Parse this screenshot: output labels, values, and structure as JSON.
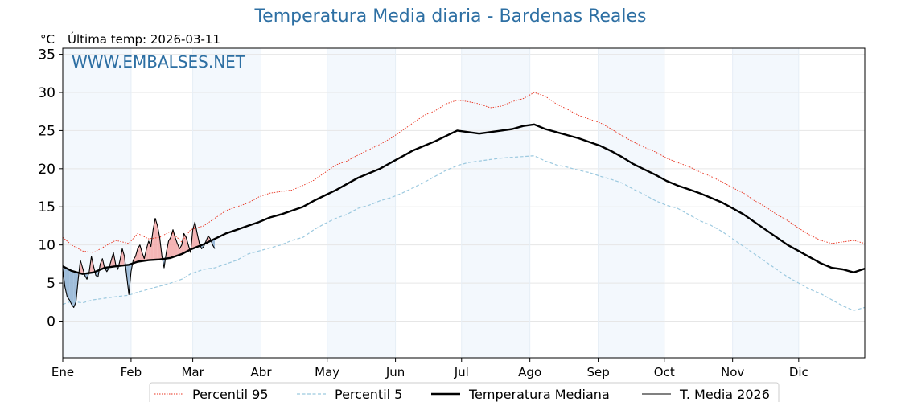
{
  "chart_data": {
    "type": "line",
    "title": "Temperatura Media diaria - Bardenas Reales",
    "unit_label": "°C",
    "last_temp_label": "Última temp: 2026-03-11",
    "watermark": "WWW.EMBALSES.NET",
    "months": [
      "Ene",
      "Feb",
      "Mar",
      "Abr",
      "May",
      "Jun",
      "Jul",
      "Ago",
      "Sep",
      "Oct",
      "Nov",
      "Dic"
    ],
    "yticks": [
      0,
      5,
      10,
      15,
      20,
      25,
      30,
      35
    ],
    "ylim": [
      -4.8,
      35.8
    ],
    "x_unit": "day of year",
    "xlim": [
      1,
      365
    ],
    "grid": true,
    "legend_position": "bottom",
    "series": [
      {
        "name": "Percentil 95",
        "color": "#e8301c",
        "style": "dotted",
        "x": [
          1,
          5,
          10,
          15,
          20,
          25,
          31,
          35,
          40,
          45,
          50,
          55,
          59,
          65,
          70,
          75,
          80,
          85,
          90,
          95,
          100,
          105,
          110,
          115,
          120,
          125,
          130,
          135,
          140,
          145,
          150,
          155,
          160,
          165,
          170,
          175,
          180,
          185,
          190,
          195,
          200,
          205,
          210,
          215,
          220,
          225,
          230,
          235,
          240,
          245,
          250,
          255,
          260,
          265,
          270,
          275,
          280,
          285,
          290,
          295,
          300,
          305,
          310,
          315,
          320,
          325,
          330,
          335,
          340,
          345,
          350,
          355,
          360,
          365
        ],
        "values": [
          11.0,
          10.0,
          9.2,
          9.0,
          9.8,
          10.6,
          10.2,
          11.5,
          10.8,
          11.0,
          11.8,
          10.4,
          12.0,
          12.5,
          13.5,
          14.5,
          15.0,
          15.5,
          16.3,
          16.8,
          17.0,
          17.2,
          17.8,
          18.5,
          19.5,
          20.5,
          21.0,
          21.8,
          22.5,
          23.2,
          24.0,
          25.0,
          26.0,
          27.0,
          27.6,
          28.5,
          29.0,
          28.8,
          28.5,
          28.0,
          28.2,
          28.8,
          29.2,
          30.0,
          29.5,
          28.5,
          27.8,
          27.0,
          26.5,
          26.0,
          25.2,
          24.3,
          23.5,
          22.8,
          22.2,
          21.4,
          20.8,
          20.3,
          19.6,
          19.0,
          18.3,
          17.5,
          16.8,
          15.8,
          15.0,
          14.0,
          13.2,
          12.2,
          11.3,
          10.6,
          10.2,
          10.4,
          10.6,
          10.2
        ]
      },
      {
        "name": "Percentil 5",
        "color": "#9cc9df",
        "style": "dashed",
        "x": [
          1,
          5,
          10,
          15,
          20,
          25,
          31,
          35,
          40,
          45,
          50,
          55,
          59,
          65,
          70,
          75,
          80,
          85,
          90,
          95,
          100,
          105,
          110,
          115,
          120,
          125,
          130,
          135,
          140,
          145,
          150,
          155,
          160,
          165,
          170,
          175,
          180,
          185,
          190,
          195,
          200,
          205,
          210,
          215,
          220,
          225,
          230,
          235,
          240,
          245,
          250,
          255,
          260,
          265,
          270,
          275,
          280,
          285,
          290,
          295,
          300,
          305,
          310,
          315,
          320,
          325,
          330,
          335,
          340,
          345,
          350,
          355,
          360,
          365
        ],
        "values": [
          2.2,
          2.6,
          2.4,
          2.8,
          3.0,
          3.2,
          3.4,
          3.8,
          4.2,
          4.6,
          5.0,
          5.5,
          6.2,
          6.8,
          7.0,
          7.5,
          8.0,
          8.8,
          9.2,
          9.6,
          10.0,
          10.6,
          11.0,
          12.0,
          12.8,
          13.5,
          14.0,
          14.8,
          15.2,
          15.8,
          16.2,
          16.8,
          17.5,
          18.2,
          19.0,
          19.8,
          20.4,
          20.8,
          21.0,
          21.2,
          21.4,
          21.5,
          21.6,
          21.7,
          21.0,
          20.5,
          20.2,
          19.8,
          19.5,
          19.0,
          18.6,
          18.1,
          17.3,
          16.6,
          15.8,
          15.2,
          14.8,
          14.0,
          13.2,
          12.6,
          11.8,
          10.8,
          9.8,
          8.8,
          7.8,
          6.8,
          5.8,
          5.0,
          4.2,
          3.6,
          2.8,
          2.0,
          1.4,
          1.8
        ]
      },
      {
        "name": "Temperatura Mediana",
        "color": "#000000",
        "style": "solid",
        "x": [
          1,
          5,
          10,
          15,
          20,
          25,
          31,
          35,
          40,
          45,
          50,
          55,
          59,
          65,
          70,
          75,
          80,
          85,
          90,
          95,
          100,
          105,
          110,
          115,
          120,
          125,
          130,
          135,
          140,
          145,
          150,
          155,
          160,
          165,
          170,
          175,
          180,
          185,
          190,
          195,
          200,
          205,
          210,
          215,
          220,
          225,
          230,
          235,
          240,
          245,
          250,
          255,
          260,
          265,
          270,
          275,
          280,
          285,
          290,
          295,
          300,
          305,
          310,
          315,
          320,
          325,
          330,
          335,
          340,
          345,
          350,
          355,
          360,
          365
        ],
        "values": [
          7.2,
          6.6,
          6.2,
          6.4,
          7.0,
          7.2,
          7.4,
          7.8,
          8.0,
          8.1,
          8.3,
          8.8,
          9.4,
          10.1,
          10.8,
          11.5,
          12.0,
          12.5,
          13.0,
          13.6,
          14.0,
          14.5,
          15.0,
          15.8,
          16.5,
          17.2,
          18.0,
          18.8,
          19.4,
          20.0,
          20.8,
          21.6,
          22.4,
          23.0,
          23.6,
          24.3,
          25.0,
          24.8,
          24.6,
          24.8,
          25.0,
          25.2,
          25.6,
          25.8,
          25.2,
          24.8,
          24.4,
          24.0,
          23.5,
          23.0,
          22.3,
          21.5,
          20.6,
          19.9,
          19.2,
          18.4,
          17.8,
          17.3,
          16.8,
          16.2,
          15.6,
          14.8,
          14.0,
          13.0,
          12.0,
          11.0,
          10.0,
          9.2,
          8.4,
          7.6,
          7.0,
          6.8,
          6.4,
          6.9
        ]
      },
      {
        "name": "T. Media 2026",
        "color": "#000000",
        "style": "solid-thin",
        "x": [
          1,
          2,
          3,
          4,
          5,
          6,
          7,
          8,
          9,
          10,
          11,
          12,
          13,
          14,
          15,
          16,
          17,
          18,
          19,
          20,
          21,
          22,
          23,
          24,
          25,
          26,
          27,
          28,
          29,
          30,
          31,
          32,
          33,
          34,
          35,
          36,
          37,
          38,
          39,
          40,
          41,
          42,
          43,
          44,
          45,
          46,
          47,
          48,
          49,
          50,
          51,
          52,
          53,
          54,
          55,
          56,
          57,
          58,
          59,
          60,
          61,
          62,
          63,
          64,
          65,
          66,
          67,
          68,
          69,
          70
        ],
        "values": [
          6.8,
          4.5,
          3.2,
          2.8,
          2.2,
          1.8,
          2.5,
          5.5,
          8.0,
          7.0,
          6.0,
          5.5,
          6.5,
          8.5,
          7.2,
          6.0,
          5.8,
          7.5,
          8.2,
          7.0,
          6.5,
          7.0,
          8.0,
          9.0,
          7.5,
          6.8,
          8.0,
          9.5,
          8.5,
          6.0,
          3.5,
          6.5,
          8.0,
          8.5,
          9.5,
          10.0,
          9.0,
          8.2,
          9.5,
          10.5,
          9.8,
          12.0,
          13.5,
          12.5,
          11.0,
          8.5,
          7.0,
          9.0,
          10.5,
          11.0,
          12.0,
          11.0,
          10.2,
          9.5,
          10.0,
          11.5,
          11.0,
          10.0,
          9.0,
          12.0,
          13.0,
          11.5,
          10.2,
          9.5,
          9.8,
          10.5,
          11.2,
          10.8,
          10.0,
          9.5
        ]
      }
    ]
  }
}
